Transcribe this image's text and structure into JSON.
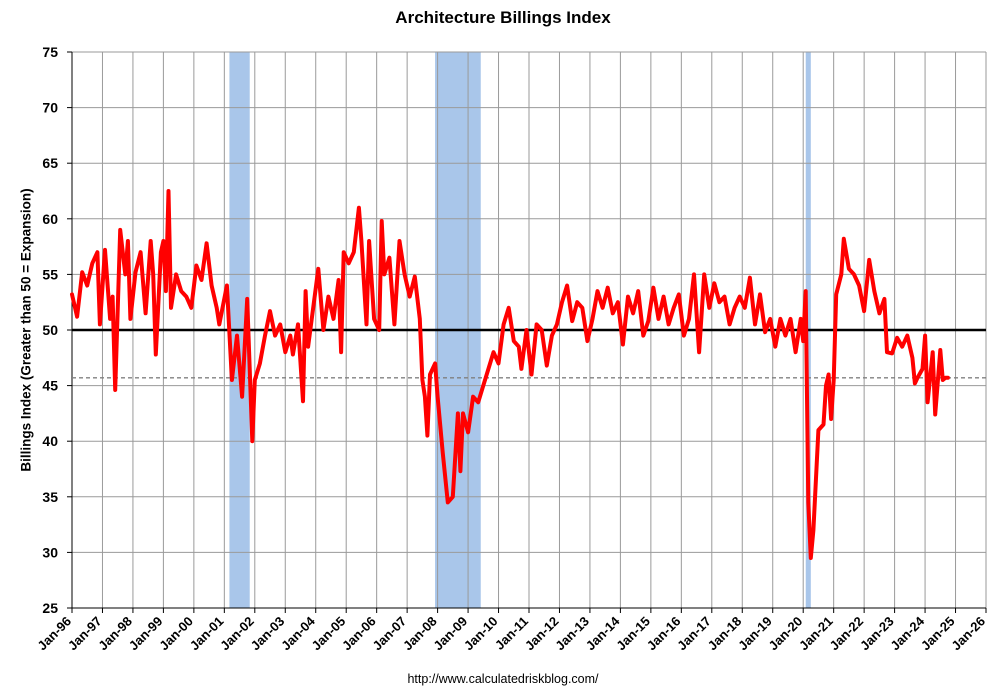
{
  "chart_data": {
    "type": "line",
    "title": "Architecture Billings Index",
    "ylabel": "Billings Index (Greater than 50 = Expansion)",
    "xlabel": "",
    "source": "http://www.calculatedriskblog.com/",
    "xlim": [
      "Jan-96",
      "Jan-26"
    ],
    "ylim": [
      25,
      75
    ],
    "y_ticks": [
      25,
      30,
      35,
      40,
      45,
      50,
      55,
      60,
      65,
      70,
      75
    ],
    "x_ticks": [
      "Jan-96",
      "Jan-97",
      "Jan-98",
      "Jan-99",
      "Jan-00",
      "Jan-01",
      "Jan-02",
      "Jan-03",
      "Jan-04",
      "Jan-05",
      "Jan-06",
      "Jan-07",
      "Jan-08",
      "Jan-09",
      "Jan-10",
      "Jan-11",
      "Jan-12",
      "Jan-13",
      "Jan-14",
      "Jan-15",
      "Jan-16",
      "Jan-17",
      "Jan-18",
      "Jan-19",
      "Jan-20",
      "Jan-21",
      "Jan-22",
      "Jan-23",
      "Jan-24",
      "Jan-25",
      "Jan-26"
    ],
    "grid": true,
    "recessions": [
      {
        "start": "Mar-01",
        "end": "Nov-01"
      },
      {
        "start": "Dec-07",
        "end": "Jun-09"
      },
      {
        "start": "Feb-20",
        "end": "Apr-20"
      }
    ],
    "reference_lines": [
      {
        "value": 50,
        "style": "solid",
        "color": "#000000"
      },
      {
        "value": 45.7,
        "style": "dashed",
        "color": "#808080"
      }
    ],
    "series": [
      {
        "color": "#ff0000",
        "points": [
          [
            "Jan-96",
            53.2
          ],
          [
            "Mar-96",
            51.2
          ],
          [
            "May-96",
            55.2
          ],
          [
            "Jul-96",
            54.0
          ],
          [
            "Sep-96",
            56.0
          ],
          [
            "Nov-96",
            57.0
          ],
          [
            "Dec-96",
            50.5
          ],
          [
            "Feb-97",
            57.2
          ],
          [
            "Apr-97",
            51.0
          ],
          [
            "May-97",
            53.0
          ],
          [
            "Jun-97",
            44.6
          ],
          [
            "Aug-97",
            59.0
          ],
          [
            "Oct-97",
            55.0
          ],
          [
            "Nov-97",
            58.0
          ],
          [
            "Dec-97",
            51.0
          ],
          [
            "Feb-98",
            55.2
          ],
          [
            "Apr-98",
            57.0
          ],
          [
            "Jun-98",
            51.5
          ],
          [
            "Aug-98",
            58.0
          ],
          [
            "Sep-98",
            55.0
          ],
          [
            "Oct-98",
            47.8
          ],
          [
            "Dec-98",
            57.0
          ],
          [
            "Jan-99",
            58.0
          ],
          [
            "Feb-99",
            53.5
          ],
          [
            "Mar-99",
            62.5
          ],
          [
            "Apr-99",
            52.0
          ],
          [
            "Jun-99",
            55.0
          ],
          [
            "Aug-99",
            53.5
          ],
          [
            "Oct-99",
            53.0
          ],
          [
            "Dec-99",
            52.0
          ],
          [
            "Feb-00",
            55.8
          ],
          [
            "Apr-00",
            54.5
          ],
          [
            "Jun-00",
            57.8
          ],
          [
            "Aug-00",
            54.0
          ],
          [
            "Oct-00",
            52.0
          ],
          [
            "Nov-00",
            50.5
          ],
          [
            "Feb-01",
            54.0
          ],
          [
            "Apr-01",
            45.5
          ],
          [
            "Jun-01",
            49.5
          ],
          [
            "Aug-01",
            44.0
          ],
          [
            "Oct-01",
            52.8
          ],
          [
            "Dec-01",
            40.0
          ],
          [
            "Jan-02",
            45.5
          ],
          [
            "Mar-02",
            47.0
          ],
          [
            "May-02",
            49.5
          ],
          [
            "Jul-02",
            51.7
          ],
          [
            "Sep-02",
            49.5
          ],
          [
            "Nov-02",
            50.5
          ],
          [
            "Jan-03",
            48.0
          ],
          [
            "Mar-03",
            49.5
          ],
          [
            "Apr-03",
            47.8
          ],
          [
            "Jun-03",
            50.5
          ],
          [
            "Aug-03",
            43.6
          ],
          [
            "Sep-03",
            53.5
          ],
          [
            "Oct-03",
            48.5
          ],
          [
            "Dec-03",
            52.0
          ],
          [
            "Feb-04",
            55.5
          ],
          [
            "Apr-04",
            50.0
          ],
          [
            "Jun-04",
            53.0
          ],
          [
            "Aug-04",
            51.0
          ],
          [
            "Oct-04",
            54.5
          ],
          [
            "Nov-04",
            48.0
          ],
          [
            "Dec-04",
            57.0
          ],
          [
            "Feb-05",
            56.0
          ],
          [
            "Apr-05",
            57.0
          ],
          [
            "Jun-05",
            61.0
          ],
          [
            "Jul-05",
            58.0
          ],
          [
            "Sep-05",
            50.5
          ],
          [
            "Oct-05",
            58.0
          ],
          [
            "Dec-05",
            51.0
          ],
          [
            "Feb-06",
            50.0
          ],
          [
            "Mar-06",
            59.8
          ],
          [
            "Apr-06",
            55.0
          ],
          [
            "Jun-06",
            56.5
          ],
          [
            "Aug-06",
            50.5
          ],
          [
            "Oct-06",
            58.0
          ],
          [
            "Dec-06",
            55.0
          ],
          [
            "Feb-07",
            53.0
          ],
          [
            "Apr-07",
            54.8
          ],
          [
            "Jun-07",
            51.0
          ],
          [
            "Jul-07",
            45.5
          ],
          [
            "Aug-07",
            44.0
          ],
          [
            "Sep-07",
            40.5
          ],
          [
            "Oct-07",
            46.0
          ],
          [
            "Dec-07",
            47.0
          ],
          [
            "Jan-08",
            44.0
          ],
          [
            "Mar-08",
            39.0
          ],
          [
            "May-08",
            34.5
          ],
          [
            "Jul-08",
            35.0
          ],
          [
            "Sep-08",
            42.5
          ],
          [
            "Oct-08",
            37.3
          ],
          [
            "Nov-08",
            42.5
          ],
          [
            "Jan-09",
            40.8
          ],
          [
            "Mar-09",
            44.0
          ],
          [
            "May-09",
            43.5
          ],
          [
            "Jul-09",
            45.0
          ],
          [
            "Sep-09",
            46.5
          ],
          [
            "Nov-09",
            48.0
          ],
          [
            "Jan-10",
            47.0
          ],
          [
            "Mar-10",
            50.5
          ],
          [
            "May-10",
            52.0
          ],
          [
            "Jul-10",
            49.0
          ],
          [
            "Sep-10",
            48.5
          ],
          [
            "Oct-10",
            46.5
          ],
          [
            "Dec-10",
            50.0
          ],
          [
            "Feb-11",
            46.0
          ],
          [
            "Apr-11",
            50.5
          ],
          [
            "Jun-11",
            50.0
          ],
          [
            "Aug-11",
            46.8
          ],
          [
            "Oct-11",
            49.5
          ],
          [
            "Dec-11",
            50.5
          ],
          [
            "Feb-12",
            52.5
          ],
          [
            "Apr-12",
            54.0
          ],
          [
            "Jun-12",
            50.8
          ],
          [
            "Aug-12",
            52.5
          ],
          [
            "Oct-12",
            52.0
          ],
          [
            "Dec-12",
            49.0
          ],
          [
            "Feb-13",
            51.0
          ],
          [
            "Apr-13",
            53.5
          ],
          [
            "Jun-13",
            52.0
          ],
          [
            "Aug-13",
            53.8
          ],
          [
            "Oct-13",
            51.5
          ],
          [
            "Dec-13",
            52.5
          ],
          [
            "Feb-14",
            48.7
          ],
          [
            "Apr-14",
            53.0
          ],
          [
            "Jun-14",
            51.5
          ],
          [
            "Aug-14",
            53.5
          ],
          [
            "Oct-14",
            49.5
          ],
          [
            "Dec-14",
            50.8
          ],
          [
            "Feb-15",
            53.8
          ],
          [
            "Apr-15",
            51.0
          ],
          [
            "Jun-15",
            53.0
          ],
          [
            "Aug-15",
            50.5
          ],
          [
            "Oct-15",
            52.0
          ],
          [
            "Dec-15",
            53.2
          ],
          [
            "Feb-16",
            49.5
          ],
          [
            "Apr-16",
            51.0
          ],
          [
            "Jun-16",
            55.0
          ],
          [
            "Aug-16",
            48.0
          ],
          [
            "Oct-16",
            55.0
          ],
          [
            "Dec-16",
            52.0
          ],
          [
            "Feb-17",
            54.2
          ],
          [
            "Apr-17",
            52.5
          ],
          [
            "Jun-17",
            53.0
          ],
          [
            "Aug-17",
            50.5
          ],
          [
            "Oct-17",
            52.0
          ],
          [
            "Dec-17",
            53.0
          ],
          [
            "Feb-18",
            52.0
          ],
          [
            "Apr-18",
            54.7
          ],
          [
            "Jun-18",
            50.5
          ],
          [
            "Aug-18",
            53.2
          ],
          [
            "Oct-18",
            49.8
          ],
          [
            "Dec-18",
            51.0
          ],
          [
            "Feb-19",
            48.5
          ],
          [
            "Apr-19",
            51.0
          ],
          [
            "Jun-19",
            49.5
          ],
          [
            "Aug-19",
            51.0
          ],
          [
            "Oct-19",
            48.0
          ],
          [
            "Dec-19",
            51.0
          ],
          [
            "Jan-20",
            49.0
          ],
          [
            "Feb-20",
            53.5
          ],
          [
            "Mar-20",
            34.5
          ],
          [
            "Apr-20",
            29.5
          ],
          [
            "May-20",
            32.0
          ],
          [
            "Jul-20",
            41.0
          ],
          [
            "Sep-20",
            41.5
          ],
          [
            "Oct-20",
            45.0
          ],
          [
            "Nov-20",
            46.0
          ],
          [
            "Dec-20",
            42.0
          ],
          [
            "Jan-21",
            45.5
          ],
          [
            "Feb-21",
            53.2
          ],
          [
            "Apr-21",
            55.0
          ],
          [
            "May-21",
            58.2
          ],
          [
            "Jul-21",
            55.5
          ],
          [
            "Sep-21",
            55.0
          ],
          [
            "Nov-21",
            54.0
          ],
          [
            "Jan-22",
            51.7
          ],
          [
            "Mar-22",
            56.3
          ],
          [
            "May-22",
            53.5
          ],
          [
            "Jul-22",
            51.5
          ],
          [
            "Sep-22",
            52.8
          ],
          [
            "Oct-22",
            48.0
          ],
          [
            "Dec-22",
            47.9
          ],
          [
            "Feb-23",
            49.3
          ],
          [
            "Apr-23",
            48.5
          ],
          [
            "Jun-23",
            49.5
          ],
          [
            "Aug-23",
            47.5
          ],
          [
            "Sep-23",
            45.2
          ],
          [
            "Oct-23",
            45.7
          ],
          [
            "Dec-23",
            46.5
          ],
          [
            "Jan-24",
            49.5
          ],
          [
            "Feb-24",
            43.5
          ],
          [
            "Apr-24",
            48.0
          ],
          [
            "May-24",
            42.4
          ],
          [
            "Jul-24",
            48.2
          ],
          [
            "Aug-24",
            45.5
          ],
          [
            "Sep-24",
            45.7
          ],
          [
            "Oct-24",
            45.7
          ]
        ]
      }
    ]
  }
}
